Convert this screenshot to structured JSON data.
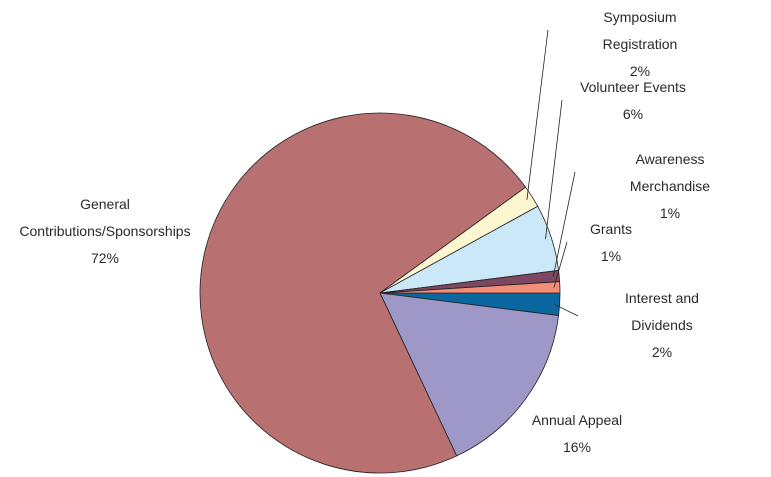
{
  "chart_data": {
    "type": "pie",
    "categories": [
      "Interest and Dividends",
      "Annual Appeal",
      "General Contributions/Sponsorships",
      "Symposium Registration",
      "Volunteer Events",
      "Awareness Merchandise",
      "Grants"
    ],
    "values": [
      2,
      16,
      72,
      2,
      6,
      1,
      1
    ],
    "value_labels": [
      "2%",
      "16%",
      "72%",
      "2%",
      "6%",
      "1%",
      "1%"
    ],
    "colors": [
      "#0b67a0",
      "#9d98c8",
      "#b87071",
      "#fcf7d0",
      "#cae8f7",
      "#7d4762",
      "#f28d78"
    ]
  }
}
